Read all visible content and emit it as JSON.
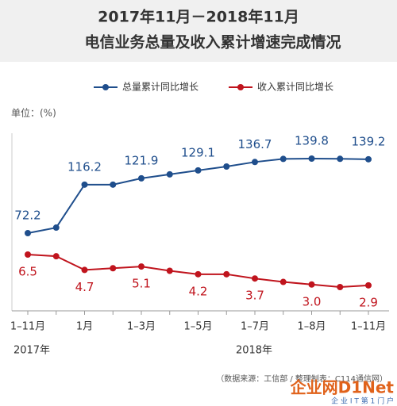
{
  "chart_data": {
    "type": "line",
    "title": "2017年11月－2018年11月",
    "subtitle": "电信业务总量及收入累计增速完成情况",
    "unit_label": "单位：(%)",
    "categories": [
      "1–11月",
      null,
      "1月",
      null,
      "1–3月",
      null,
      "1–5月",
      null,
      "1–7月",
      null,
      "1–8月",
      null,
      "1–11月"
    ],
    "year_labels": [
      "2017年",
      "2018年"
    ],
    "series": [
      {
        "name": "总量累计同比增长",
        "color": "#1f4e8c",
        "values": [
          72.2,
          77.2,
          116.2,
          116.2,
          121.9,
          125.5,
          129.1,
          132.6,
          136.7,
          139.5,
          139.8,
          139.6,
          139.2
        ],
        "value_labels": [
          "72.2",
          null,
          "116.2",
          null,
          "121.9",
          null,
          "129.1",
          null,
          "136.7",
          null,
          "139.8",
          null,
          "139.2"
        ]
      },
      {
        "name": "收入累计同比增长",
        "color": "#c0141d",
        "values": [
          6.5,
          6.3,
          4.7,
          4.9,
          5.1,
          4.6,
          4.2,
          4.2,
          3.7,
          3.3,
          3.0,
          2.7,
          2.9
        ],
        "value_labels": [
          "6.5",
          null,
          "4.7",
          null,
          "5.1",
          null,
          "4.2",
          null,
          "3.7",
          null,
          "3.0",
          null,
          "2.9"
        ]
      }
    ],
    "source": "（数据来源：工信部 / 整理制表：C114通信网）",
    "watermark": "企业网D1Net",
    "watermark_sub": "企 业 I T 第 1 门 户"
  }
}
